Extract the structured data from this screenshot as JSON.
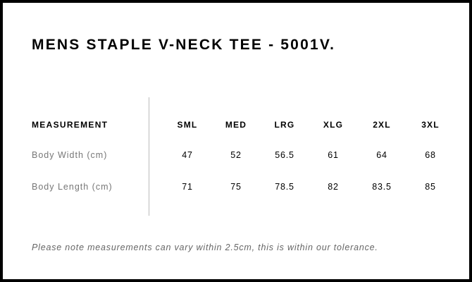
{
  "title": "MENS STAPLE V-NECK TEE - 5001V.",
  "table": {
    "header": [
      "MEASUREMENT",
      "SML",
      "MED",
      "LRG",
      "XLG",
      "2XL",
      "3XL"
    ],
    "rows": [
      [
        "Body Width (cm)",
        "47",
        "52",
        "56.5",
        "61",
        "64",
        "68"
      ],
      [
        "Body Length (cm)",
        "71",
        "75",
        "78.5",
        "82",
        "83.5",
        "85"
      ]
    ]
  },
  "note": "Please note measurements can vary within 2.5cm, this is within our tolerance."
}
